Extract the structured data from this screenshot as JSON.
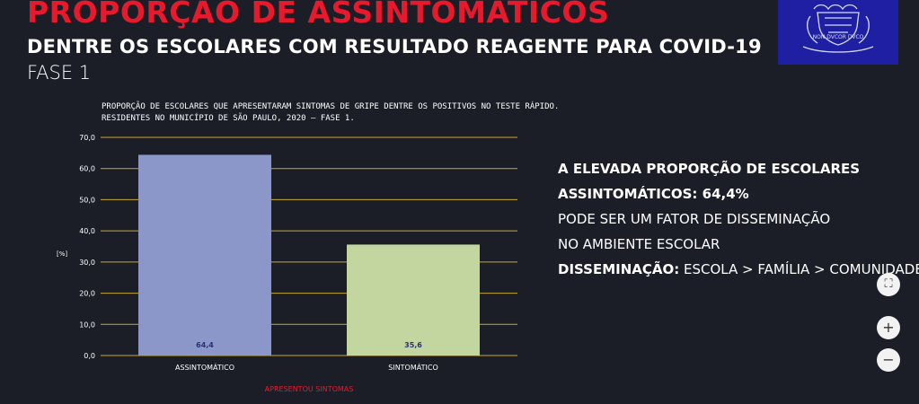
{
  "header": {
    "title": "PROPORÇAO DE ASSINTOMATICOS",
    "subtitle": "DENTRE OS ESCOLARES COM RESULTADO REAGENTE PARA COVID-19",
    "phase": "FASE 1"
  },
  "logo": {
    "text": "NON DVCOR DVCO",
    "color": "#1f1fa3"
  },
  "chart_data": {
    "type": "bar",
    "title_lines": [
      "PROPORÇÃO DE ESCOLARES QUE APRESENTARAM SINTOMAS DE GRIPE DENTRE OS POSITIVOS NO TESTE RÁPIDO.",
      "RESIDENTES NO MUNICÍPIO DE SÃO PAULO, 2020 – FASE 1."
    ],
    "categories": [
      "ASSINTOMÁTICO",
      "SINTOMÁTICO"
    ],
    "values": [
      64.4,
      35.6
    ],
    "value_labels": [
      "64,4",
      "35,6"
    ],
    "bar_colors": [
      "#8c97c9",
      "#c4d69f"
    ],
    "ylabel": "[%]",
    "xlabel": "APRESENTOU SINTOMAS",
    "ylim": [
      0,
      70
    ],
    "yticks": [
      "0,0",
      "10,0",
      "20,0",
      "30,0",
      "40,0",
      "50,0",
      "60,0",
      "70,0"
    ],
    "grid": true,
    "grid_color": "#c8a830",
    "xlabel_color": "#e8192c",
    "value_label_color": "#2a2f7a"
  },
  "message": {
    "line1": "A ELEVADA PROPORÇÃO DE ESCOLARES",
    "line2": "ASSINTOMÁTICOS: 64,4%",
    "line3": "PODE SER UM FATOR DE DISSEMINAÇÃO",
    "line4": "NO AMBIENTE ESCOLAR",
    "line5_bold": "DISSEMINAÇÃO:",
    "line5_rest": " ESCOLA > FAMÍLIA > COMUNIDADE"
  },
  "controls": {
    "fit_icon": "⛶",
    "zoom_in": "+",
    "zoom_out": "−"
  }
}
